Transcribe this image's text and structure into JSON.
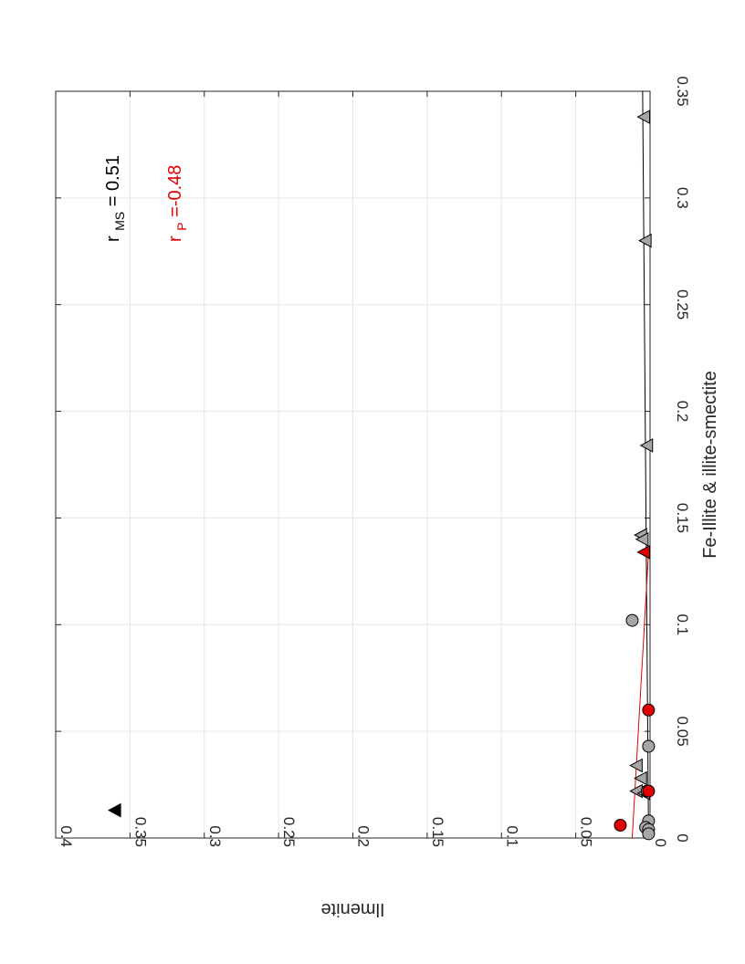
{
  "chart_data": {
    "type": "scatter",
    "orientation": "rotated 90 degrees clockwise",
    "xlabel": "Fe-Illite & illite-smectite",
    "ylabel": "Ilmenite",
    "xlim": [
      0,
      0.35
    ],
    "ylim": [
      0,
      0.4
    ],
    "xticks": [
      "0",
      "0.05",
      "0.1",
      "0.15",
      "0.2",
      "0.25",
      "0.3",
      "0.35"
    ],
    "yticks": [
      "0",
      "0.05",
      "0.1",
      "0.15",
      "0.2",
      "0.25",
      "0.3",
      "0.35",
      "0.4"
    ],
    "grid": true,
    "annotations": [
      {
        "base": "r",
        "sub": "MS",
        "rest": " = 0.51",
        "color": "#000000"
      },
      {
        "base": "r",
        "sub": "P",
        "rest": " =-0.48",
        "color": "#e00000"
      }
    ],
    "series": [
      {
        "marker": "triangle",
        "fill": "#a6a6a6",
        "points": [
          [
            0.338,
            0.004
          ],
          [
            0.28,
            0.003
          ],
          [
            0.184,
            0.002
          ],
          [
            0.142,
            0.006
          ],
          [
            0.14,
            0.005
          ],
          [
            0.034,
            0.009
          ],
          [
            0.028,
            0.006
          ],
          [
            0.022,
            0.009
          ],
          [
            0.021,
            0.004
          ]
        ]
      },
      {
        "marker": "circle",
        "fill": "#a6a6a6",
        "points": [
          [
            0.102,
            0.012
          ],
          [
            0.043,
            0.001
          ],
          [
            0.022,
            0.002
          ],
          [
            0.008,
            0.001
          ],
          [
            0.005,
            0.003
          ],
          [
            0.004,
            0.001
          ],
          [
            0.002,
            0.001
          ]
        ]
      },
      {
        "marker": "circle",
        "fill": "#e00000",
        "points": [
          [
            0.06,
            0.001
          ],
          [
            0.022,
            0.001
          ],
          [
            0.006,
            0.02
          ]
        ]
      },
      {
        "marker": "triangle",
        "fill": "#e00000",
        "points": [
          [
            0.134,
            0.004
          ]
        ]
      },
      {
        "marker": "triangle",
        "fill": "#000000",
        "points": [
          [
            0.013,
            0.36
          ]
        ]
      }
    ],
    "fit_lines": [
      {
        "color": "#000000",
        "from": [
          0.0,
          0.001
        ],
        "to": [
          0.35,
          0.005
        ]
      },
      {
        "color": "#e00000",
        "from": [
          0.0,
          0.012
        ],
        "to": [
          0.134,
          0.001
        ]
      }
    ]
  }
}
